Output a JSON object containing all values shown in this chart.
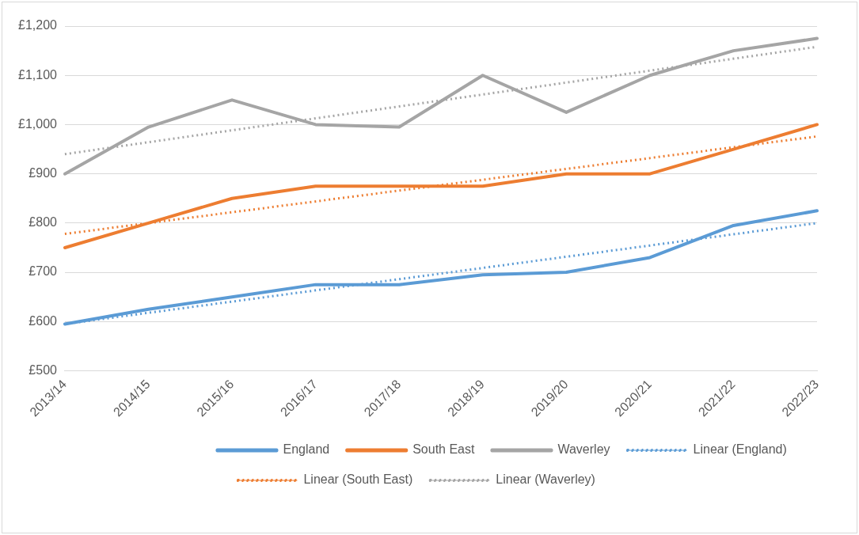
{
  "chart_data": {
    "type": "line",
    "categories": [
      "2013/14",
      "2014/15",
      "2015/16",
      "2016/17",
      "2017/18",
      "2018/19",
      "2019/20",
      "2020/21",
      "2021/22",
      "2022/23"
    ],
    "series": [
      {
        "name": "England",
        "color": "#5b9bd5",
        "values": [
          595,
          625,
          650,
          675,
          675,
          695,
          700,
          730,
          795,
          825
        ]
      },
      {
        "name": "South East",
        "color": "#ed7d31",
        "values": [
          750,
          800,
          850,
          875,
          875,
          875,
          900,
          900,
          950,
          1000
        ]
      },
      {
        "name": "Waverley",
        "color": "#a5a5a5",
        "values": [
          900,
          995,
          1050,
          1000,
          995,
          1100,
          1025,
          1100,
          1150,
          1175
        ]
      },
      {
        "name": "Linear (England)",
        "color": "#5b9bd5",
        "line_style": "dotted",
        "x": [
          "2013/14",
          "2022/23"
        ],
        "values": [
          595,
          800
        ]
      },
      {
        "name": "Linear (South East)",
        "color": "#ed7d31",
        "line_style": "dotted",
        "x": [
          "2013/14",
          "2022/23"
        ],
        "values": [
          778,
          976
        ]
      },
      {
        "name": "Linear (Waverley)",
        "color": "#a5a5a5",
        "line_style": "dotted",
        "x": [
          "2013/14",
          "2022/23"
        ],
        "values": [
          940,
          1158
        ]
      }
    ],
    "ylim": [
      500,
      1200
    ],
    "yticks": [
      {
        "value": 500,
        "label": "£500"
      },
      {
        "value": 600,
        "label": "£600"
      },
      {
        "value": 700,
        "label": "£700"
      },
      {
        "value": 800,
        "label": "£800"
      },
      {
        "value": 900,
        "label": "£900"
      },
      {
        "value": 1000,
        "label": "£1,000"
      },
      {
        "value": 1100,
        "label": "£1,100"
      },
      {
        "value": 1200,
        "label": "£1,200"
      }
    ],
    "grid": "y",
    "legend": "bottom",
    "marker": "none",
    "line_style": "solid"
  }
}
